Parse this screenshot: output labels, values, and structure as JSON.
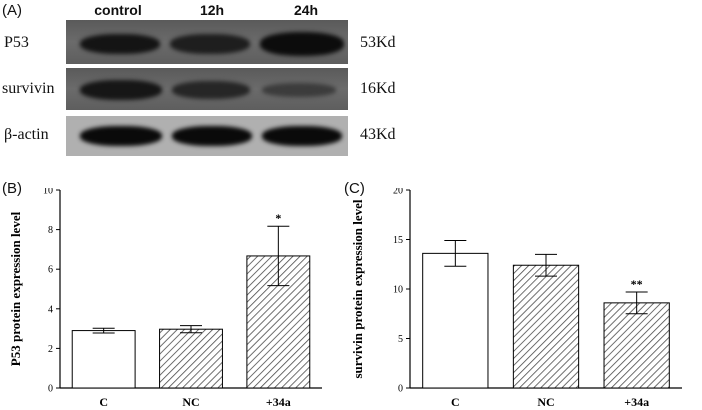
{
  "panel_a": {
    "tag": "(A)",
    "lanes": [
      "control",
      "12h",
      "24h"
    ],
    "rows": [
      {
        "protein": "P53",
        "size": "53Kd"
      },
      {
        "protein": "survivin",
        "size": "16Kd"
      },
      {
        "protein": "β-actin",
        "size": "43Kd"
      }
    ]
  },
  "chart_data": [
    {
      "type": "bar",
      "panel": "(B)",
      "categories": [
        "C",
        "NC",
        "+34a"
      ],
      "values": [
        2.9,
        2.97,
        6.67
      ],
      "errors": [
        0.12,
        0.18,
        1.5
      ],
      "significance": [
        "",
        "",
        "*"
      ],
      "ylabel": "P53 protein expression level",
      "ylim": [
        0,
        10
      ],
      "yticks": [
        0,
        2,
        4,
        6,
        8,
        10
      ],
      "xlabel": "",
      "bar_fills": [
        "white",
        "hatched",
        "hatched"
      ]
    },
    {
      "type": "bar",
      "panel": "(C)",
      "categories": [
        "C",
        "NC",
        "+34a"
      ],
      "values": [
        13.6,
        12.4,
        8.6
      ],
      "errors": [
        1.3,
        1.1,
        1.1
      ],
      "significance": [
        "",
        "",
        "**"
      ],
      "ylabel": "survivin protein expression level",
      "ylim": [
        0,
        20
      ],
      "yticks": [
        0,
        5,
        10,
        15,
        20
      ],
      "xlabel": "",
      "bar_fills": [
        "white",
        "hatched",
        "hatched"
      ]
    }
  ]
}
